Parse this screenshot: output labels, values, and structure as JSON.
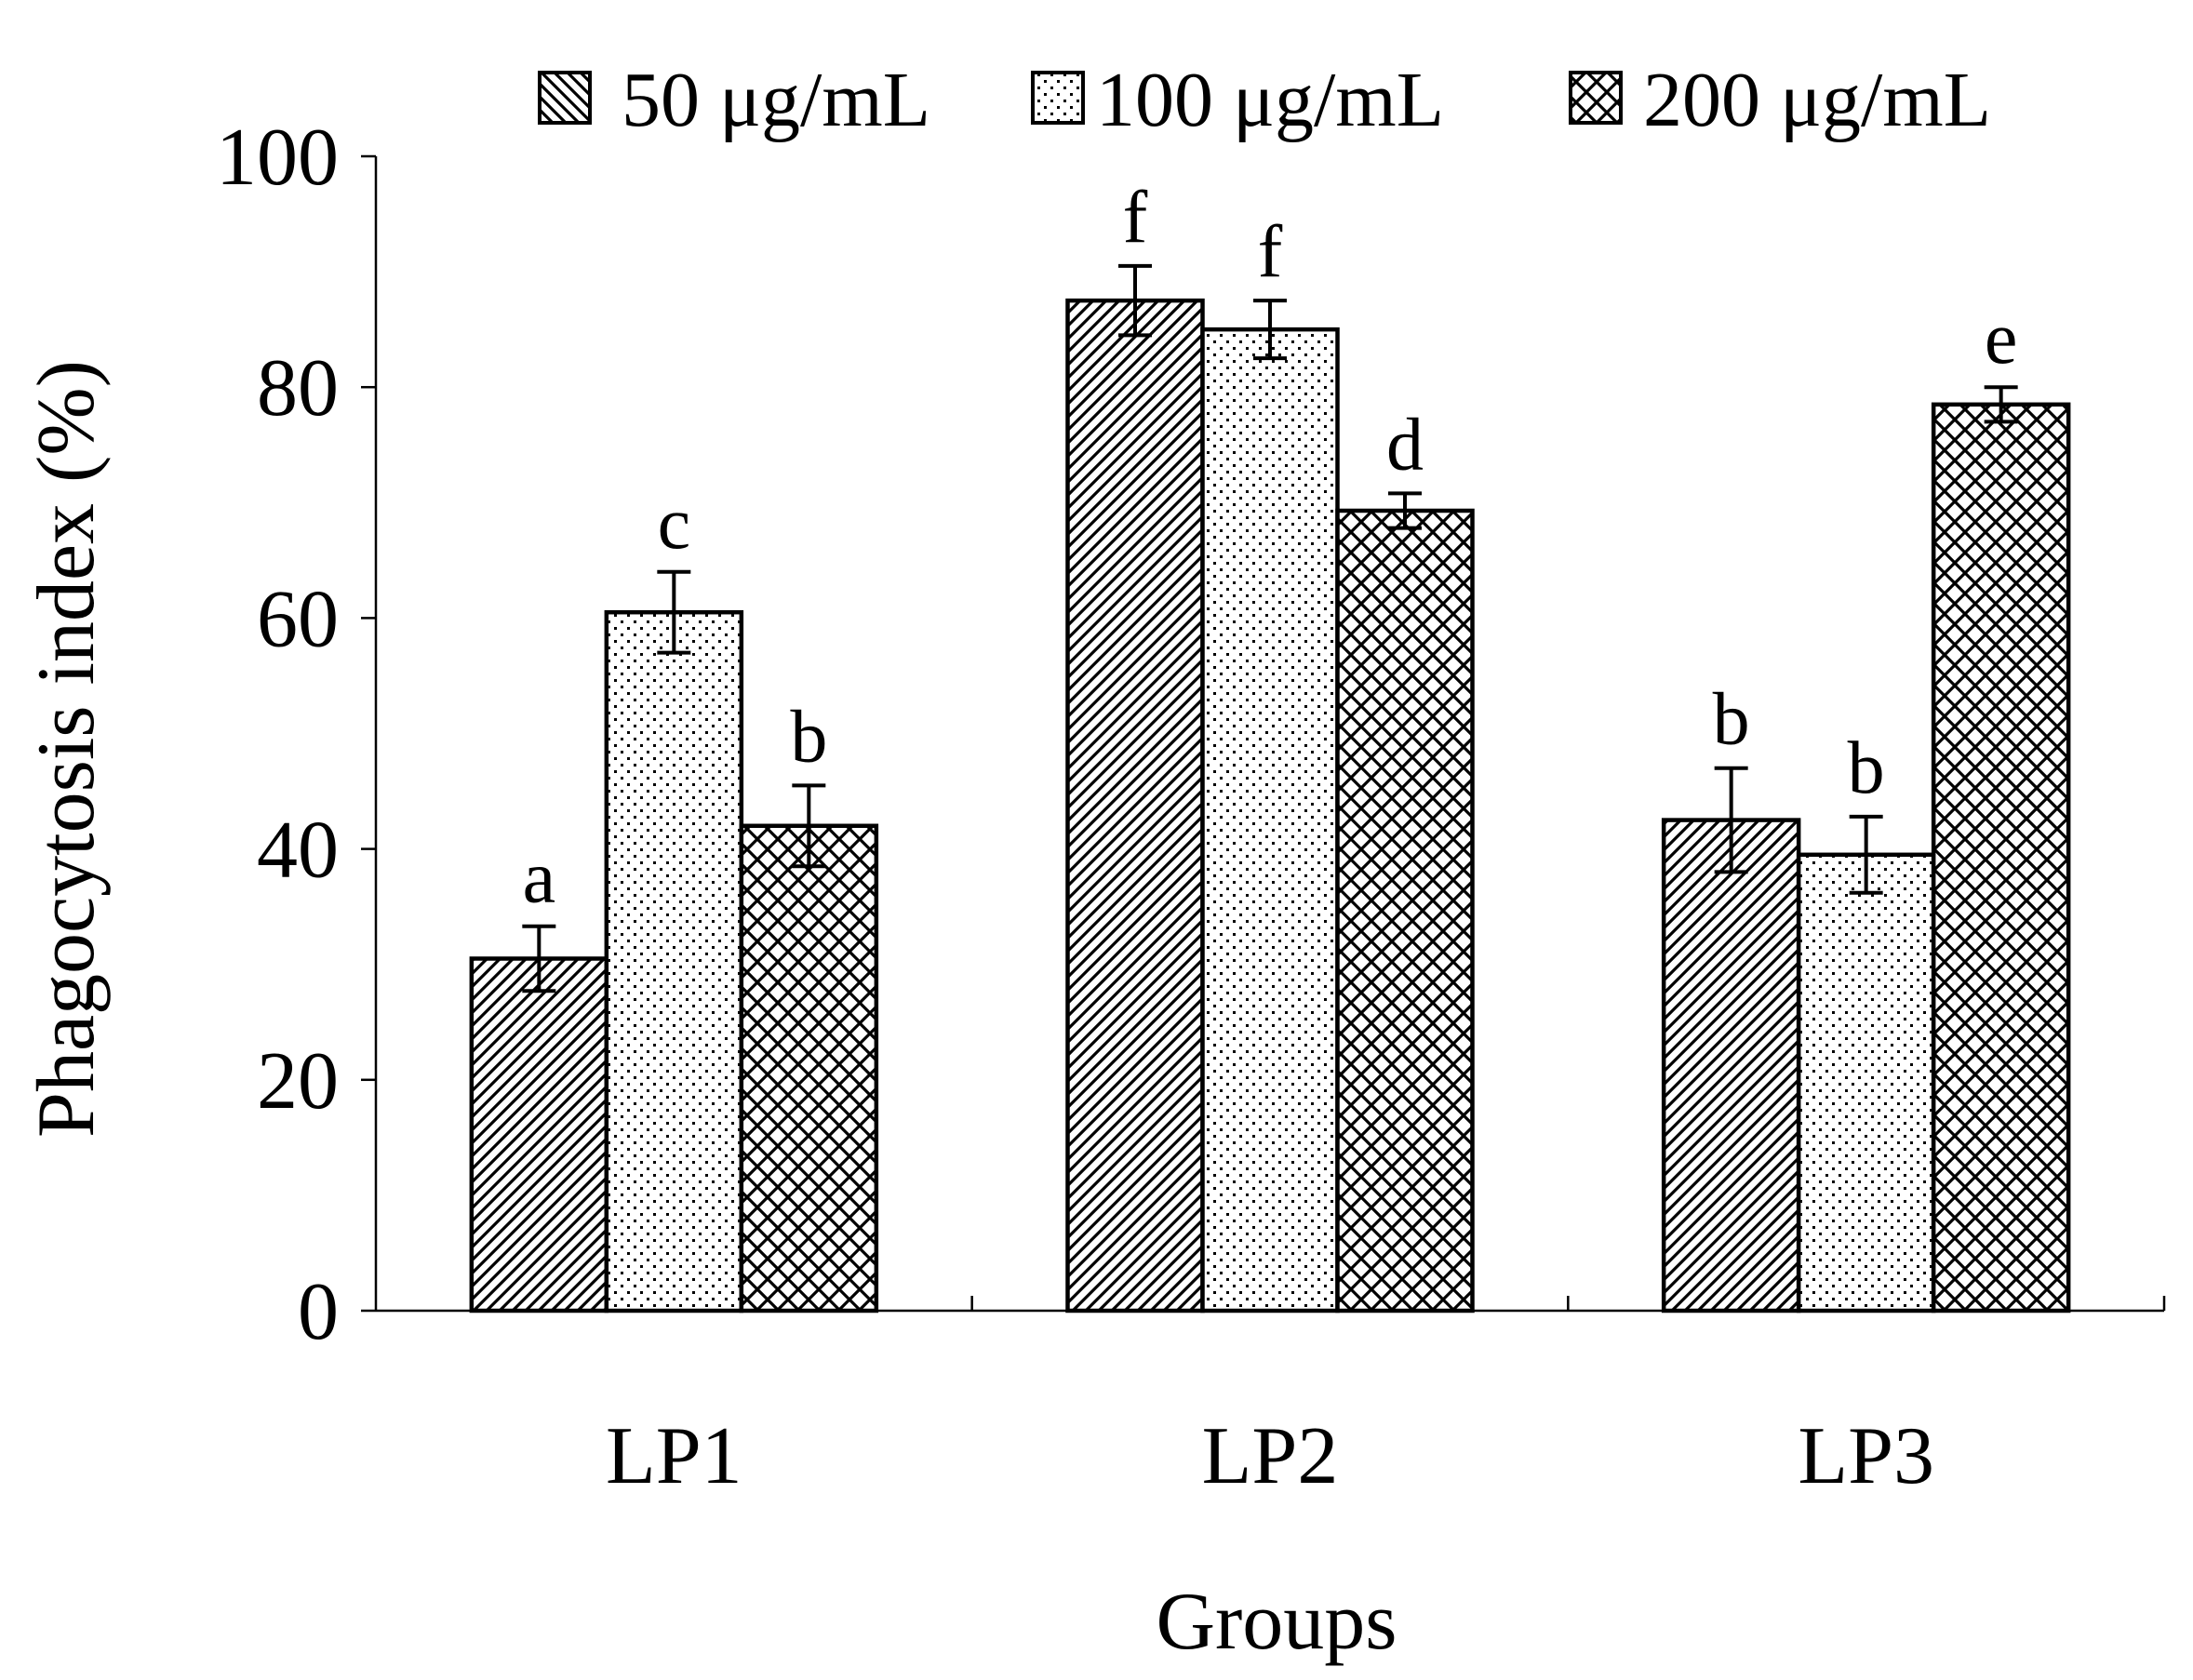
{
  "chart_data": {
    "type": "bar",
    "xlabel": "Groups",
    "ylabel": "Phagocytosis index (%)",
    "ylim": [
      0,
      100
    ],
    "yticks": [
      "0",
      "20",
      "40",
      "60",
      "80",
      "100"
    ],
    "categories": [
      "LP1",
      "LP2",
      "LP3"
    ],
    "legend_position": "top",
    "series": [
      {
        "name": "50 μg/mL",
        "pattern": "diagonal",
        "values": [
          30.5,
          87.5,
          42.5
        ],
        "errors": [
          2.8,
          3.0,
          4.5
        ],
        "labels": [
          "a",
          "f",
          "b"
        ]
      },
      {
        "name": "100 μg/mL",
        "pattern": "dots",
        "values": [
          60.5,
          85.0,
          39.5
        ],
        "errors": [
          3.5,
          2.5,
          3.3
        ],
        "labels": [
          "c",
          "f",
          "b"
        ]
      },
      {
        "name": "200 μg/mL",
        "pattern": "crosshatch",
        "values": [
          42.0,
          69.3,
          78.5
        ],
        "errors": [
          3.5,
          1.5,
          1.5
        ],
        "labels": [
          "b",
          "d",
          "e"
        ]
      }
    ]
  }
}
